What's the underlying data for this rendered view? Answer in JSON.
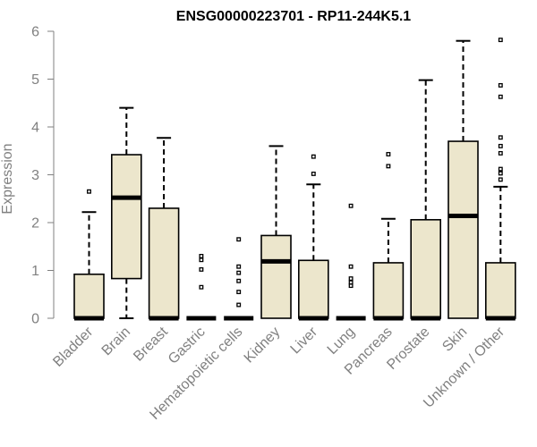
{
  "chart_data": {
    "type": "box",
    "title": "ENSG00000223701 - RP11-244K5.1",
    "ylabel": "Expression",
    "xlabel": "",
    "ylim": [
      0,
      6
    ],
    "yticks": [
      0,
      1,
      2,
      3,
      4,
      5,
      6
    ],
    "grid": false,
    "colors": {
      "box_fill": "#ece6cc",
      "box_stroke": "#000000",
      "axis": "#808080"
    },
    "categories": [
      "Bladder",
      "Brain",
      "Breast",
      "Gastric",
      "Hematopoietic cells",
      "Kidney",
      "Liver",
      "Lung",
      "Pancreas",
      "Prostate",
      "Skin",
      "Unknown / Other"
    ],
    "boxes": [
      {
        "q1": 0,
        "median": 0,
        "q3": 0.92,
        "whisker_low": 0,
        "whisker_high": 2.22,
        "outliers": [
          2.65
        ]
      },
      {
        "q1": 0.83,
        "median": 2.52,
        "q3": 3.42,
        "whisker_low": 0,
        "whisker_high": 4.4,
        "outliers": []
      },
      {
        "q1": 0,
        "median": 0,
        "q3": 2.3,
        "whisker_low": 0,
        "whisker_high": 3.77,
        "outliers": []
      },
      {
        "q1": 0,
        "median": 0,
        "q3": 0,
        "whisker_low": 0,
        "whisker_high": 0,
        "outliers": [
          0.65,
          1.02,
          1.22,
          1.3
        ]
      },
      {
        "q1": 0,
        "median": 0,
        "q3": 0,
        "whisker_low": 0,
        "whisker_high": 0,
        "outliers": [
          0.28,
          0.55,
          0.78,
          0.95,
          1.08,
          1.65
        ]
      },
      {
        "q1": 0,
        "median": 1.19,
        "q3": 1.73,
        "whisker_low": 0,
        "whisker_high": 3.6,
        "outliers": []
      },
      {
        "q1": 0,
        "median": 0,
        "q3": 1.21,
        "whisker_low": 0,
        "whisker_high": 2.8,
        "outliers": [
          3.02,
          3.38
        ]
      },
      {
        "q1": 0,
        "median": 0,
        "q3": 0,
        "whisker_low": 0,
        "whisker_high": 0,
        "outliers": [
          0.68,
          0.75,
          0.83,
          1.08,
          2.35
        ]
      },
      {
        "q1": 0,
        "median": 0,
        "q3": 1.16,
        "whisker_low": 0,
        "whisker_high": 2.08,
        "outliers": [
          3.18,
          3.43
        ]
      },
      {
        "q1": 0,
        "median": 0,
        "q3": 2.06,
        "whisker_low": 0,
        "whisker_high": 4.98,
        "outliers": []
      },
      {
        "q1": 0,
        "median": 2.14,
        "q3": 3.7,
        "whisker_low": 0,
        "whisker_high": 5.8,
        "outliers": []
      },
      {
        "q1": 0,
        "median": 0,
        "q3": 1.16,
        "whisker_low": 0,
        "whisker_high": 2.75,
        "outliers": [
          2.9,
          3.03,
          3.12,
          3.45,
          3.6,
          3.78,
          4.63,
          4.87,
          5.82
        ]
      }
    ]
  }
}
